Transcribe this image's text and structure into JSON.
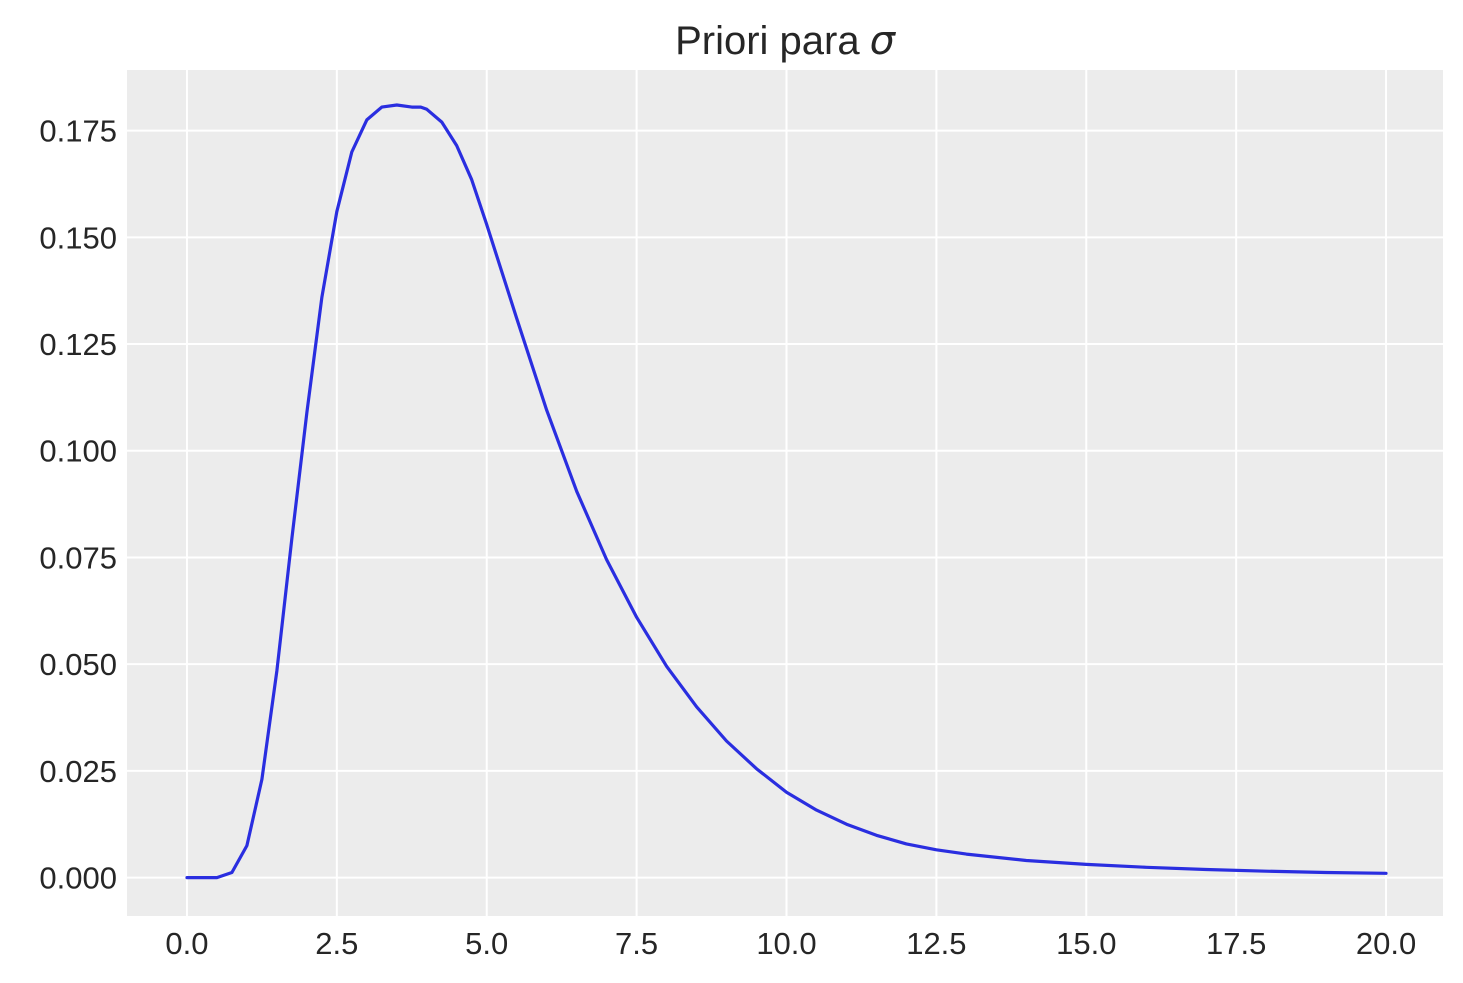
{
  "chart_data": {
    "type": "line",
    "title": "Priori para",
    "title_symbol": "σ",
    "xlabel": "",
    "ylabel": "",
    "xlim": [
      -1.0,
      20.95
    ],
    "ylim": [
      -0.009,
      0.1892
    ],
    "grid": true,
    "legend": "none",
    "colors": {
      "line": "#2a2ee0",
      "plot_bg": "#ececec",
      "grid": "#ffffff",
      "text": "#262626"
    },
    "x_ticks": [
      0.0,
      2.5,
      5.0,
      7.5,
      10.0,
      12.5,
      15.0,
      17.5,
      20.0
    ],
    "x_tick_labels": [
      "0.0",
      "2.5",
      "5.0",
      "7.5",
      "10.0",
      "12.5",
      "15.0",
      "17.5",
      "20.0"
    ],
    "y_ticks": [
      0.0,
      0.025,
      0.05,
      0.075,
      0.1,
      0.125,
      0.15,
      0.175
    ],
    "y_tick_labels": [
      "0.000",
      "0.025",
      "0.050",
      "0.075",
      "0.100",
      "0.125",
      "0.150",
      "0.175"
    ],
    "series": [
      {
        "x": [
          0.0,
          0.5,
          0.75,
          1.0,
          1.25,
          1.5,
          1.75,
          2.0,
          2.25,
          2.5,
          2.75,
          3.0,
          3.25,
          3.5,
          3.75,
          3.9,
          4.0,
          4.25,
          4.5,
          4.75,
          5.0,
          5.5,
          6.0,
          6.5,
          7.0,
          7.5,
          8.0,
          8.5,
          9.0,
          9.5,
          10.0,
          10.5,
          11.0,
          11.5,
          12.0,
          12.5,
          13.0,
          14.0,
          15.0,
          16.0,
          17.0,
          18.0,
          19.0,
          20.0
        ],
        "y": [
          0.0,
          0.0,
          0.0012,
          0.0075,
          0.023,
          0.0485,
          0.0795,
          0.109,
          0.136,
          0.156,
          0.17,
          0.1775,
          0.1805,
          0.181,
          0.1805,
          0.1805,
          0.18,
          0.177,
          0.1715,
          0.1635,
          0.153,
          0.131,
          0.1095,
          0.0905,
          0.0745,
          0.061,
          0.0495,
          0.04,
          0.032,
          0.0255,
          0.02,
          0.0158,
          0.0125,
          0.0099,
          0.0079,
          0.0065,
          0.0055,
          0.004,
          0.0031,
          0.0024,
          0.0019,
          0.0015,
          0.0012,
          0.001
        ]
      }
    ]
  }
}
